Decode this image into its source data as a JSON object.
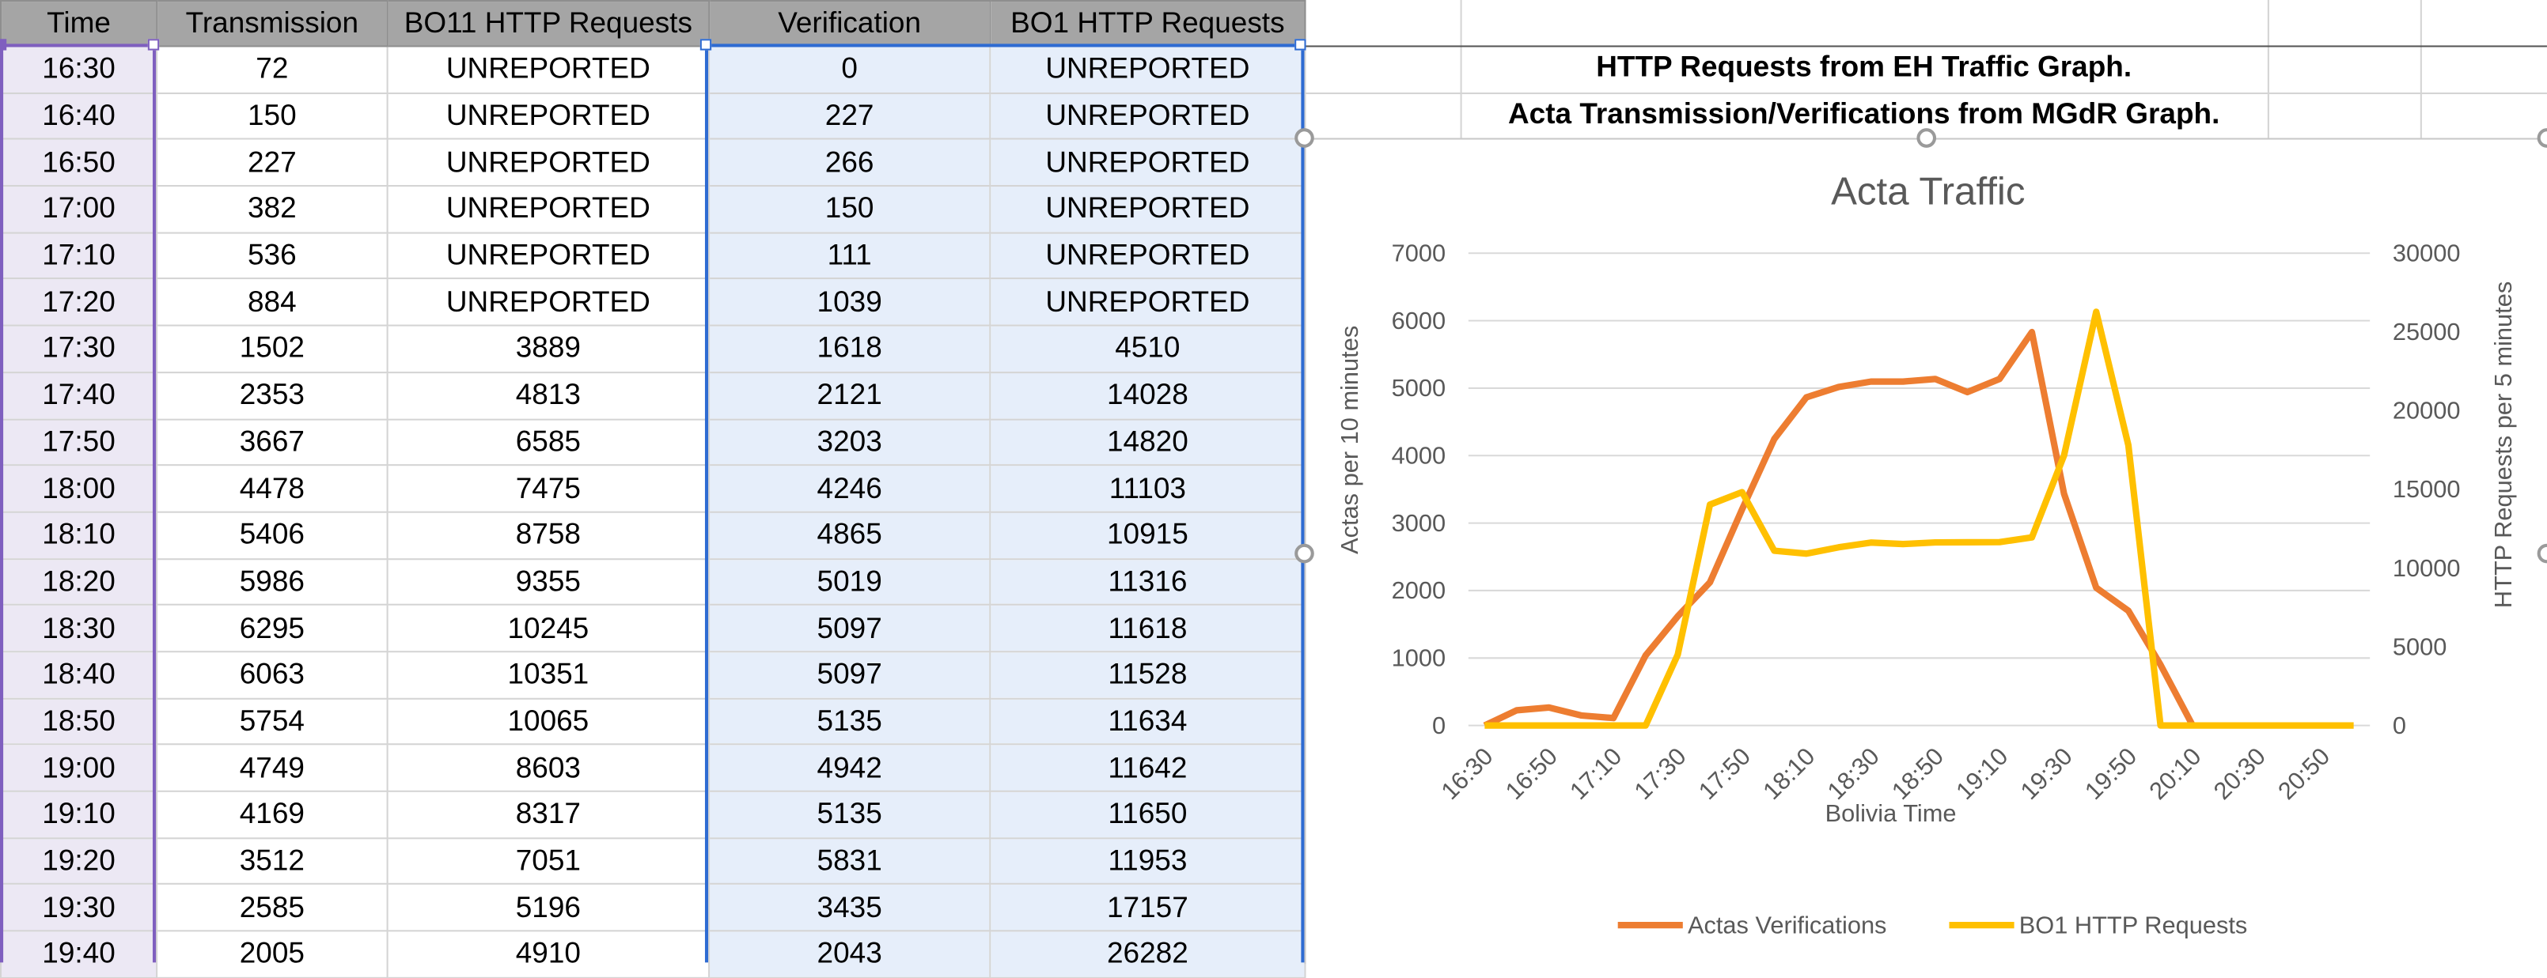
{
  "table": {
    "headers": [
      "Time",
      "Transmission",
      "BO11 HTTP Requests",
      "Verification",
      "BO1 HTTP Requests"
    ],
    "rows": [
      [
        "16:30",
        "72",
        "UNREPORTED",
        "0",
        "UNREPORTED"
      ],
      [
        "16:40",
        "150",
        "UNREPORTED",
        "227",
        "UNREPORTED"
      ],
      [
        "16:50",
        "227",
        "UNREPORTED",
        "266",
        "UNREPORTED"
      ],
      [
        "17:00",
        "382",
        "UNREPORTED",
        "150",
        "UNREPORTED"
      ],
      [
        "17:10",
        "536",
        "UNREPORTED",
        "111",
        "UNREPORTED"
      ],
      [
        "17:20",
        "884",
        "UNREPORTED",
        "1039",
        "UNREPORTED"
      ],
      [
        "17:30",
        "1502",
        "3889",
        "1618",
        "4510"
      ],
      [
        "17:40",
        "2353",
        "4813",
        "2121",
        "14028"
      ],
      [
        "17:50",
        "3667",
        "6585",
        "3203",
        "14820"
      ],
      [
        "18:00",
        "4478",
        "7475",
        "4246",
        "11103"
      ],
      [
        "18:10",
        "5406",
        "8758",
        "4865",
        "10915"
      ],
      [
        "18:20",
        "5986",
        "9355",
        "5019",
        "11316"
      ],
      [
        "18:30",
        "6295",
        "10245",
        "5097",
        "11618"
      ],
      [
        "18:40",
        "6063",
        "10351",
        "5097",
        "11528"
      ],
      [
        "18:50",
        "5754",
        "10065",
        "5135",
        "11634"
      ],
      [
        "19:00",
        "4749",
        "8603",
        "4942",
        "11642"
      ],
      [
        "19:10",
        "4169",
        "8317",
        "5135",
        "11650"
      ],
      [
        "19:20",
        "3512",
        "7051",
        "5831",
        "11953"
      ],
      [
        "19:30",
        "2585",
        "5196",
        "3435",
        "17157"
      ],
      [
        "19:40",
        "2005",
        "4910",
        "2043",
        "26282"
      ]
    ]
  },
  "notes": {
    "line1": "HTTP Requests from EH Traffic Graph.",
    "line2": "Acta Transmission/Verifications from MGdR Graph."
  },
  "colors": {
    "verifications": "#ED7D31",
    "http": "#FFC000",
    "header_bg": "#A5A5A5",
    "selection_a": "#7F5FBF",
    "selection_b": "#2E6BD2"
  },
  "chart_data": {
    "type": "line",
    "title": "Acta Traffic",
    "xlabel": "Bolivia Time",
    "ylabel": "Actas per 10 minutes",
    "y2label": "HTTP Requests per 5 minutes",
    "ylim": [
      0,
      7000
    ],
    "y2lim": [
      0,
      30000
    ],
    "y_ticks": [
      "0",
      "1000",
      "2000",
      "3000",
      "4000",
      "5000",
      "6000",
      "7000"
    ],
    "y2_ticks": [
      "0",
      "5000",
      "10000",
      "15000",
      "20000",
      "25000",
      "30000"
    ],
    "x_tick_labels": [
      "16:30",
      "16:50",
      "17:10",
      "17:30",
      "17:50",
      "18:10",
      "18:30",
      "18:50",
      "19:10",
      "19:30",
      "19:50",
      "20:10",
      "20:30",
      "20:50"
    ],
    "x": [
      "16:30",
      "16:40",
      "16:50",
      "17:00",
      "17:10",
      "17:20",
      "17:30",
      "17:40",
      "17:50",
      "18:00",
      "18:10",
      "18:20",
      "18:30",
      "18:40",
      "18:50",
      "19:00",
      "19:10",
      "19:20",
      "19:30",
      "19:40",
      "19:50",
      "20:00",
      "20:10",
      "20:20",
      "20:30",
      "20:40",
      "20:50",
      "21:00"
    ],
    "grid": true,
    "legend": "bottom",
    "series": [
      {
        "name": "Actas Verifications",
        "axis": "left",
        "values": [
          0,
          227,
          266,
          150,
          111,
          1039,
          1618,
          2121,
          3203,
          4246,
          4865,
          5019,
          5097,
          5097,
          5135,
          4942,
          5135,
          5831,
          3435,
          2043,
          1700,
          900,
          0,
          null,
          null,
          null,
          null,
          null
        ]
      },
      {
        "name": "BO1 HTTP Requests",
        "axis": "right",
        "values": [
          0,
          0,
          0,
          0,
          0,
          0,
          4510,
          14028,
          14820,
          11103,
          10915,
          11316,
          11618,
          11528,
          11634,
          11642,
          11650,
          11953,
          17157,
          26282,
          17800,
          0,
          0,
          0,
          0,
          0,
          0,
          0
        ]
      }
    ]
  }
}
